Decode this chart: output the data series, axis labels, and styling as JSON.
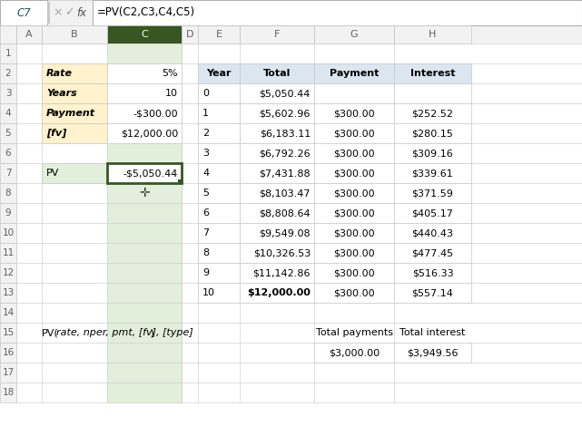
{
  "formula_bar_cell": "C7",
  "formula_bar_formula": "=PV(C2,C3,C4,C5)",
  "col_headers": [
    "A",
    "B",
    "C",
    "D",
    "E",
    "F",
    "G",
    "H"
  ],
  "input_labels": [
    "Rate",
    "Years",
    "Payment",
    "[fv]"
  ],
  "input_values": [
    "5%",
    "10",
    "-$300.00",
    "$12,000.00"
  ],
  "pv_label": "PV",
  "pv_value": "-$5,050.44",
  "table_headers": [
    "Year",
    "Total",
    "Payment",
    "Interest"
  ],
  "table_data": [
    [
      "0",
      "$5,050.44",
      "",
      ""
    ],
    [
      "1",
      "$5,602.96",
      "$300.00",
      "$252.52"
    ],
    [
      "2",
      "$6,183.11",
      "$300.00",
      "$280.15"
    ],
    [
      "3",
      "$6,792.26",
      "$300.00",
      "$309.16"
    ],
    [
      "4",
      "$7,431.88",
      "$300.00",
      "$339.61"
    ],
    [
      "5",
      "$8,103.47",
      "$300.00",
      "$371.59"
    ],
    [
      "6",
      "$8,808.64",
      "$300.00",
      "$405.17"
    ],
    [
      "7",
      "$9,549.08",
      "$300.00",
      "$440.43"
    ],
    [
      "8",
      "$10,326.53",
      "$300.00",
      "$477.45"
    ],
    [
      "9",
      "$11,142.86",
      "$300.00",
      "$516.33"
    ],
    [
      "10",
      "$12,000.00",
      "$300.00",
      "$557.14"
    ]
  ],
  "formula_italic": "rate, nper, pmt, [fv], [type]",
  "totals_headers": [
    "Total payments",
    "Total interest"
  ],
  "totals_values": [
    "$3,000.00",
    "$3,949.56"
  ],
  "bg_color": "#ffffff",
  "col_header_bg": "#f2f2f2",
  "row_header_bg": "#f2f2f2",
  "input_label_bg": "#fff2cc",
  "table_header_bg": "#dce6f1",
  "pv_label_bg": "#e2efda",
  "pv_border_color": "#375623",
  "selected_col_header_bg": "#375623",
  "grid_color": "#d0d0d0",
  "formula_bar_bg": "#f2f2f2",
  "formula_input_bg": "#ffffff",
  "col_C_highlight": "#e2efda"
}
